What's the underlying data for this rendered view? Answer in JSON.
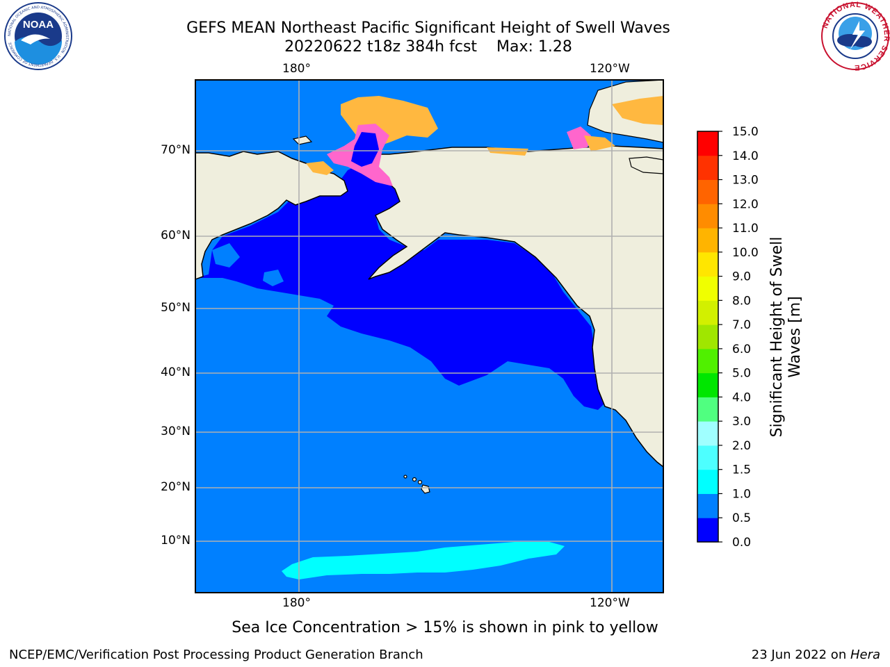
{
  "header": {
    "title_line1": "GEFS MEAN Northeast Pacific Significant Height of Swell Waves",
    "title_line2": "20220622 t18z 384h fcst",
    "max_label": "Max: 1.28"
  },
  "logos": {
    "left": {
      "text": "NOAA",
      "ring_text": "NATIONAL OCEANIC AND ATMOSPHERIC ADMINISTRATION · U.S. DEPARTMENT OF COMMERCE"
    },
    "right": {
      "ring_text": "NATIONAL WEATHER SERVICE"
    }
  },
  "map": {
    "lon_labels_top": [
      "180°",
      "120°W"
    ],
    "lon_labels_bottom": [
      "180°",
      "120°W"
    ],
    "lat_labels": [
      "70°N",
      "60°N",
      "50°N",
      "40°N",
      "30°N",
      "20°N",
      "10°N"
    ],
    "colors": {
      "land": "#efeedd",
      "coast": "#000000",
      "grid": "#b0b0b0",
      "swell_0_0p5": "#0000ff",
      "swell_0p5_1": "#0080ff",
      "swell_1_1p5": "#00ffff",
      "ice_pink": "#ff66cc",
      "ice_orange": "#ffb840"
    }
  },
  "colorbar": {
    "ticks": [
      "0.0",
      "0.5",
      "1.0",
      "1.5",
      "2.0",
      "3.0",
      "4.0",
      "5.0",
      "6.0",
      "7.0",
      "8.0",
      "9.0",
      "10.0",
      "11.0",
      "12.0",
      "13.0",
      "14.0",
      "15.0"
    ],
    "colors": [
      "#0000ff",
      "#0080ff",
      "#00ffff",
      "#4dffff",
      "#a0ffff",
      "#50ff80",
      "#00e600",
      "#50f000",
      "#a0e600",
      "#d2f000",
      "#f0ff00",
      "#ffe600",
      "#ffb400",
      "#ff8c00",
      "#ff6400",
      "#ff3200",
      "#ff0000"
    ],
    "label_line1": "Significant Height of Swell",
    "label_line2": "Waves [m]"
  },
  "caption": "Sea Ice Concentration > 15% is shown in pink to yellow",
  "footer": {
    "left": "NCEP/EMC/Verification Post Processing Product Generation Branch",
    "date": "23 Jun 2022 on ",
    "host": "Hera"
  }
}
